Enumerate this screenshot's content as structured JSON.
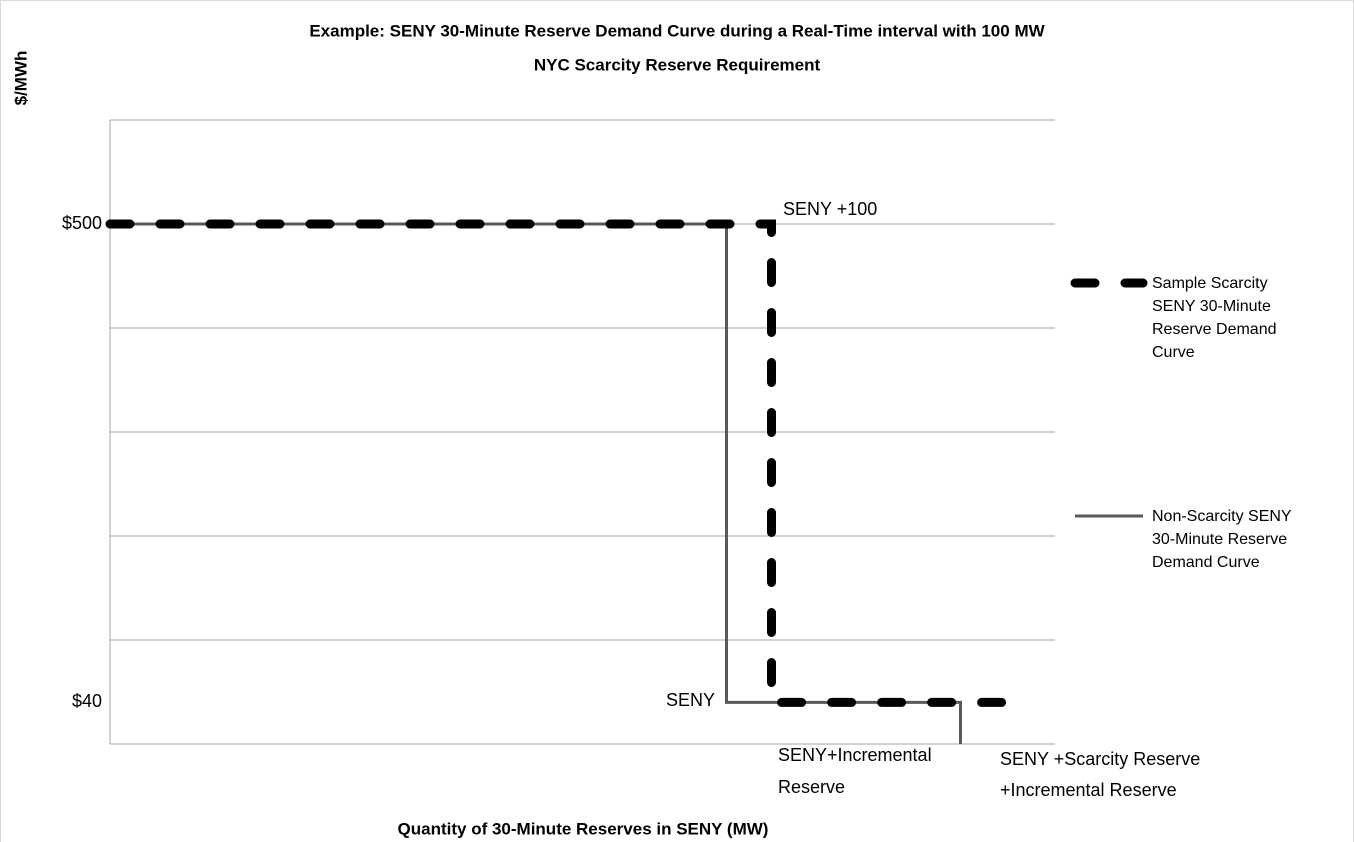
{
  "chart_data": {
    "type": "step",
    "title_lines": [
      "Example: SENY 30-Minute Reserve Demand Curve during a Real-Time interval with 100 MW",
      "NYC Scarcity Reserve Requirement"
    ],
    "y_label": "$/MWh",
    "x_label": "Quantity of 30-Minute Reserves in SENY (MW)",
    "xlim": [
      0,
      2100
    ],
    "ylim": [
      0,
      600
    ],
    "yticks": [
      {
        "value": 40,
        "label": "$40"
      },
      {
        "value": 500,
        "label": "$500"
      }
    ],
    "ygrid": [
      100,
      200,
      300,
      400,
      500,
      600
    ],
    "series": [
      {
        "name": "Sample Scarcity SENY 30-Minute Reserve Demand Curve",
        "color": "#000000",
        "style": "dashed",
        "x": [
          0,
          1470,
          1470,
          1990,
          1990
        ],
        "values": [
          500,
          500,
          40,
          40,
          20
        ]
      },
      {
        "name": "Non-Scarcity SENY 30-Minute Reserve Demand Curve",
        "color": "#595959",
        "style": "solid",
        "x": [
          0,
          1370,
          1370,
          1890,
          1890
        ],
        "values": [
          500,
          500,
          40,
          40,
          0
        ]
      }
    ],
    "annotations": [
      {
        "lines": [
          "SENY +100"
        ]
      },
      {
        "lines": [
          "SENY"
        ]
      },
      {
        "lines": [
          "SENY+Incremental",
          "Reserve"
        ]
      },
      {
        "lines": [
          "SENY +Scarcity Reserve",
          "+Incremental Reserve"
        ]
      }
    ]
  }
}
